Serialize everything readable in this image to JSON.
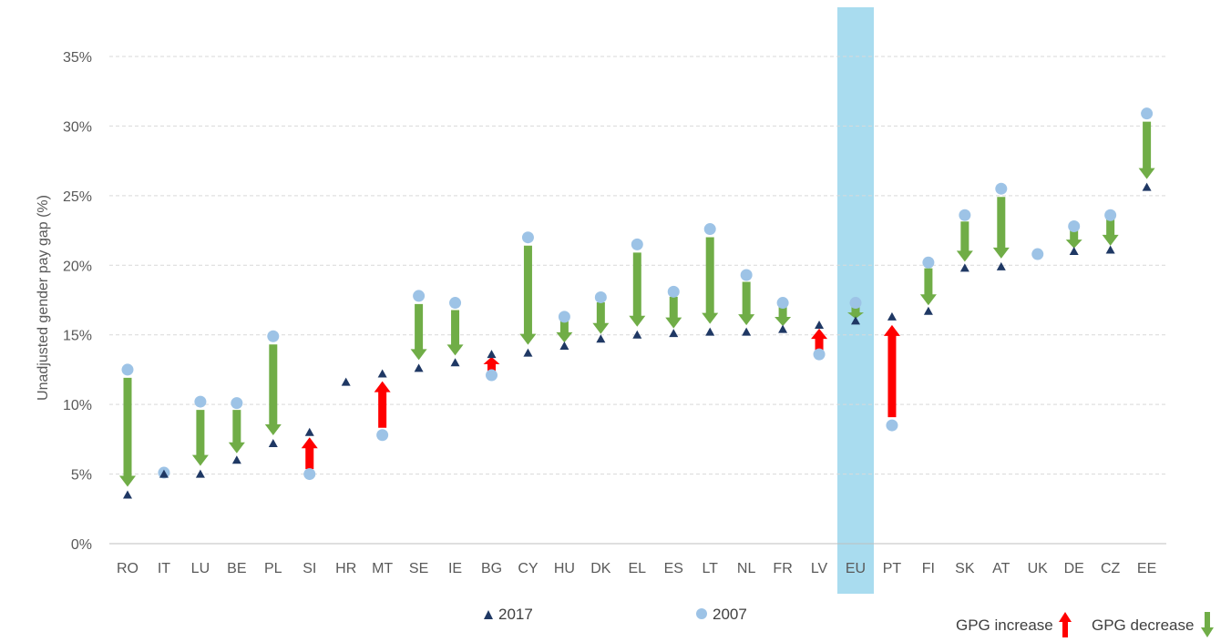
{
  "chart_data": {
    "type": "scatter",
    "ylabel": "Unadjusted gender pay gap (%)",
    "ylim": [
      0,
      35
    ],
    "yticks": [
      "0%",
      "5%",
      "10%",
      "15%",
      "20%",
      "25%",
      "30%",
      "35%"
    ],
    "ytick_values": [
      0,
      5,
      10,
      15,
      20,
      25,
      30,
      35
    ],
    "grid": true,
    "categories": [
      "RO",
      "IT",
      "LU",
      "BE",
      "PL",
      "SI",
      "HR",
      "MT",
      "SE",
      "IE",
      "BG",
      "CY",
      "HU",
      "DK",
      "EL",
      "ES",
      "LT",
      "NL",
      "FR",
      "LV",
      "EU",
      "PT",
      "FI",
      "SK",
      "AT",
      "UK",
      "DE",
      "CZ",
      "EE"
    ],
    "highlight_category": "EU",
    "series": [
      {
        "name": "2017",
        "marker": "triangle",
        "values": [
          3.5,
          5.0,
          5.0,
          6.0,
          7.2,
          8.0,
          11.6,
          12.2,
          12.6,
          13.0,
          13.6,
          13.7,
          14.2,
          14.7,
          15.0,
          15.1,
          15.2,
          15.2,
          15.4,
          15.7,
          16.0,
          16.3,
          16.7,
          19.8,
          19.9,
          null,
          21.0,
          21.1,
          25.6
        ]
      },
      {
        "name": "2007",
        "marker": "circle",
        "values": [
          12.5,
          5.1,
          10.2,
          10.1,
          14.9,
          5.0,
          null,
          7.8,
          17.8,
          17.3,
          12.1,
          22.0,
          16.3,
          17.7,
          21.5,
          18.1,
          22.6,
          19.3,
          17.3,
          13.6,
          17.3,
          8.5,
          20.2,
          23.6,
          25.5,
          20.8,
          22.8,
          23.6,
          30.9
        ]
      }
    ],
    "legend": {
      "series_labels": [
        "2017",
        "2007"
      ],
      "increase_label": "GPG increase",
      "decrease_label": "GPG decrease"
    },
    "colors": {
      "triangle": "#1F3864",
      "circle": "#9DC3E6",
      "increase": "#FF0000",
      "decrease": "#70AD47",
      "highlight": "#A9DCEF",
      "grid": "#D9D9D9",
      "axis": "#BFBFBF"
    }
  }
}
